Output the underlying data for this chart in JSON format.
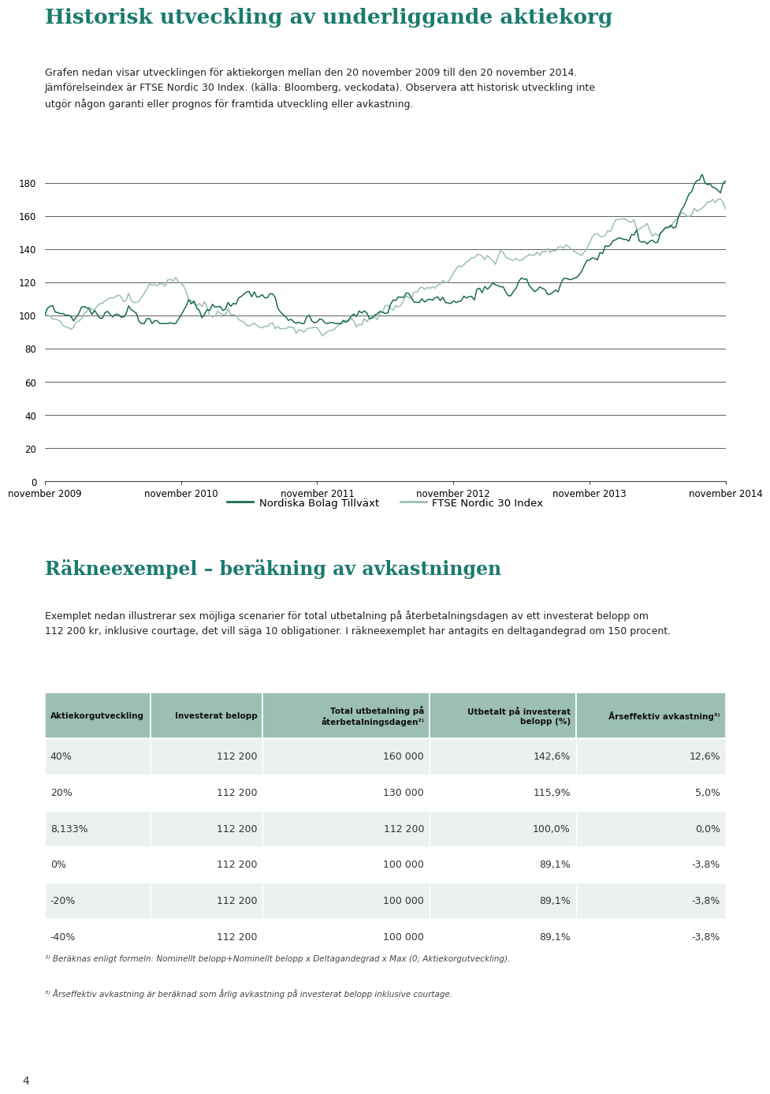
{
  "title": "Historisk utveckling av underliggande aktiekorg",
  "subtitle_lines": [
    "Grafen nedan visar utvecklingen för aktiekorgen mellan den 20 november 2009 till den 20 november 2014.",
    "Jämförelseindex är FTSE Nordic 30 Index. (källa: Bloomberg, veckodata). Observera att historisk utveckling inte",
    "utgör någon garanti eller prognos för framtida utveckling eller avkastning."
  ],
  "title_color": "#1a7a6e",
  "line1_color": "#1a6b52",
  "line2_color": "#9bbfb5",
  "yticks": [
    0,
    20,
    40,
    60,
    80,
    100,
    120,
    140,
    160,
    180
  ],
  "xtick_labels": [
    "november 2009",
    "november 2010",
    "november 2011",
    "november 2012",
    "november 2013",
    "november 2014"
  ],
  "legend_label1": "Nordiska Bolag Tillväxt",
  "legend_label2": "FTSE Nordic 30 Index",
  "section2_title": "Räkneexempel – beräkning av avkastningen",
  "section2_body1": "Exemplet nedan illustrerar sex möjliga scenarier för total utbetalning på återbetalningsdagen av ett investerat belopp om",
  "section2_body2": "112 200 kr, inklusive courtage, det vill säga 10 obligationer. I räkneexemplet har antagits en deltagandegrad om 150 procent.",
  "table_header_bg": "#9bbfb5",
  "table_row_bg_alt": "#eaf1ef",
  "table_row_bg_plain": "#ffffff",
  "table_col_headers": [
    "Aktiekorgutveckling",
    "Investerat belopp",
    "Total utbetalning på\nåterbetalningsdagen²⁾",
    "Utbetalt på investerat\nbelopp (%)",
    "Årseffektiv avkastning³⁾"
  ],
  "table_data": [
    [
      "40%",
      "112 200",
      "160 000",
      "142,6%",
      "12,6%"
    ],
    [
      "20%",
      "112 200",
      "130 000",
      "115,9%",
      "5,0%"
    ],
    [
      "8,133%",
      "112 200",
      "112 200",
      "100,0%",
      "0,0%"
    ],
    [
      "0%",
      "112 200",
      "100 000",
      "89,1%",
      "-3,8%"
    ],
    [
      "-20%",
      "112 200",
      "100 000",
      "89,1%",
      "-3,8%"
    ],
    [
      "-40%",
      "112 200",
      "100 000",
      "89,1%",
      "-3,8%"
    ]
  ],
  "footnote1": "²⁾ Beräknas enligt formeln: Nominellt belopp+Nominellt belopp x Deltagandegrad x Max (0; Aktiekorgutveckling).",
  "footnote2": "³⁾ Årseffektiv avkastning är beräknad som årlig avkastning på investerat belopp inklusive courtage.",
  "page_number": "4",
  "background_color": "#ffffff"
}
